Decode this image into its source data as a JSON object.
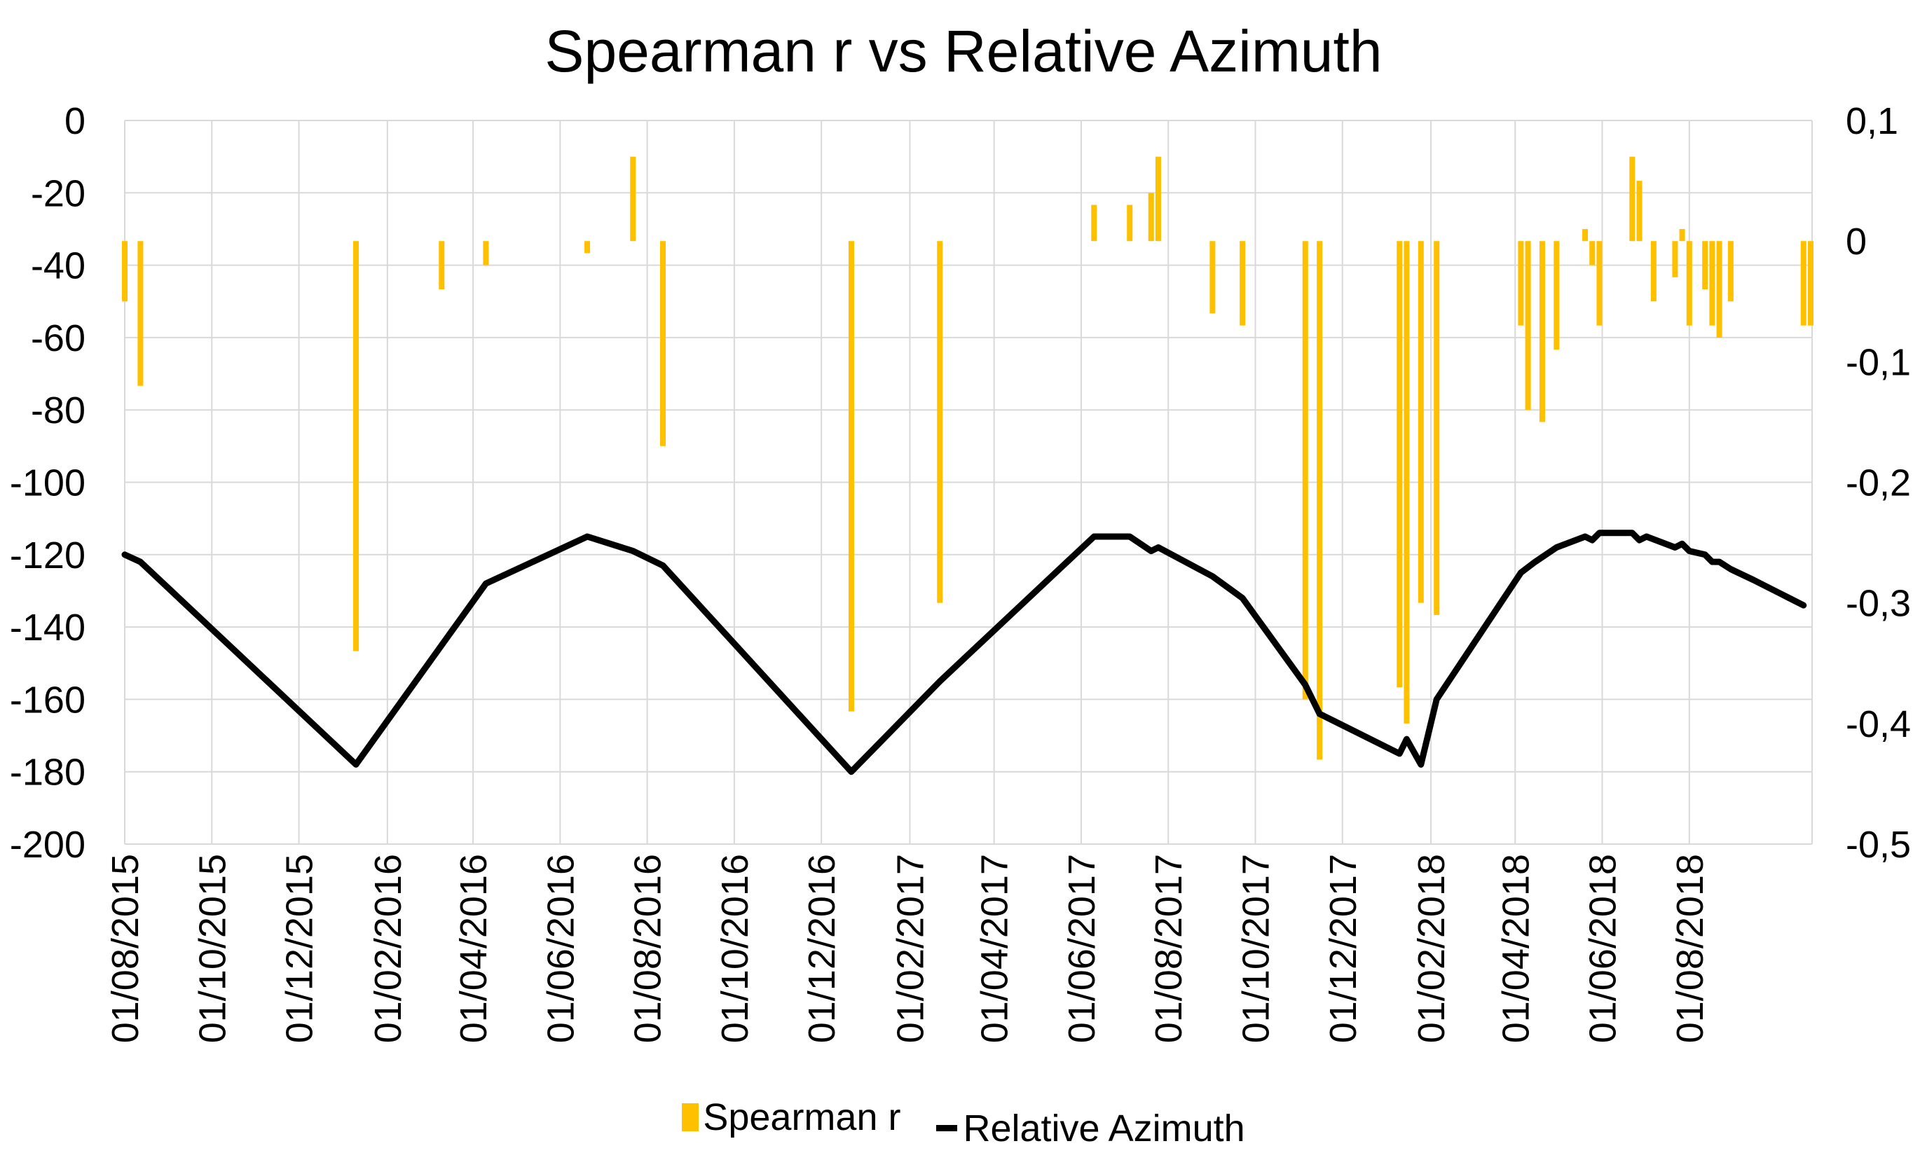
{
  "colors": {
    "spearman": "#FFC000",
    "azimuth": "#000000",
    "grid": "#D9D9D9",
    "axis_text": "#000000"
  },
  "chart_data": {
    "type": "bar",
    "title": "Spearman r vs Relative Azimuth",
    "xlabel": "",
    "ylabel": "",
    "y2label": "",
    "x_type": "date",
    "x_range": [
      "2015-08-01",
      "2018-10-26"
    ],
    "x_ticks": [
      "01/08/2015",
      "01/10/2015",
      "01/12/2015",
      "01/02/2016",
      "01/04/2016",
      "01/06/2016",
      "01/08/2016",
      "01/10/2016",
      "01/12/2016",
      "01/02/2017",
      "01/04/2017",
      "01/06/2017",
      "01/08/2017",
      "01/10/2017",
      "01/12/2017",
      "01/02/2018",
      "01/04/2018",
      "01/06/2018",
      "01/08/2018"
    ],
    "ylim": [
      -200,
      0
    ],
    "y_ticks": [
      "0",
      "-20",
      "-40",
      "-60",
      "-80",
      "-100",
      "-120",
      "-140",
      "-160",
      "-180",
      "-200"
    ],
    "y_tick_values": [
      0,
      -20,
      -40,
      -60,
      -80,
      -100,
      -120,
      -140,
      -160,
      -180,
      -200
    ],
    "y2lim": [
      -0.5,
      0.1
    ],
    "y2_ticks": [
      "0,1",
      "0",
      "-0,1",
      "-0,2",
      "-0,3",
      "-0,4",
      "-0,5"
    ],
    "y2_tick_values": [
      0.1,
      0,
      -0.1,
      -0.2,
      -0.3,
      -0.4,
      -0.5
    ],
    "grid": true,
    "legend_position": "bottom",
    "legend": [
      "Spearman r",
      "Relative Azimuth"
    ],
    "series": [
      {
        "name": "Spearman r",
        "type": "bar",
        "axis": "right",
        "points": [
          {
            "x": "2015-08-01",
            "y": -0.05
          },
          {
            "x": "2015-08-12",
            "y": -0.12
          },
          {
            "x": "2016-01-10",
            "y": -0.34
          },
          {
            "x": "2016-03-10",
            "y": -0.04
          },
          {
            "x": "2016-04-10",
            "y": -0.02
          },
          {
            "x": "2016-06-20",
            "y": -0.01
          },
          {
            "x": "2016-07-22",
            "y": 0.07
          },
          {
            "x": "2016-08-12",
            "y": -0.17
          },
          {
            "x": "2016-12-22",
            "y": -0.39
          },
          {
            "x": "2017-02-22",
            "y": -0.3
          },
          {
            "x": "2017-06-10",
            "y": 0.03
          },
          {
            "x": "2017-07-05",
            "y": 0.03
          },
          {
            "x": "2017-07-20",
            "y": 0.04
          },
          {
            "x": "2017-07-25",
            "y": 0.07
          },
          {
            "x": "2017-09-01",
            "y": -0.06
          },
          {
            "x": "2017-09-22",
            "y": -0.07
          },
          {
            "x": "2017-11-05",
            "y": -0.38
          },
          {
            "x": "2017-11-15",
            "y": -0.43
          },
          {
            "x": "2018-01-10",
            "y": -0.37
          },
          {
            "x": "2018-01-15",
            "y": -0.4
          },
          {
            "x": "2018-01-25",
            "y": -0.3
          },
          {
            "x": "2018-02-05",
            "y": -0.31
          },
          {
            "x": "2018-04-05",
            "y": -0.07
          },
          {
            "x": "2018-04-10",
            "y": -0.14
          },
          {
            "x": "2018-04-20",
            "y": -0.15
          },
          {
            "x": "2018-04-30",
            "y": -0.09
          },
          {
            "x": "2018-05-20",
            "y": 0.01
          },
          {
            "x": "2018-05-25",
            "y": -0.02
          },
          {
            "x": "2018-05-30",
            "y": -0.07
          },
          {
            "x": "2018-06-22",
            "y": 0.07
          },
          {
            "x": "2018-06-27",
            "y": 0.05
          },
          {
            "x": "2018-07-07",
            "y": -0.05
          },
          {
            "x": "2018-07-22",
            "y": -0.03
          },
          {
            "x": "2018-07-27",
            "y": 0.01
          },
          {
            "x": "2018-08-01",
            "y": -0.07
          },
          {
            "x": "2018-08-12",
            "y": -0.04
          },
          {
            "x": "2018-08-17",
            "y": -0.07
          },
          {
            "x": "2018-08-22",
            "y": -0.08
          },
          {
            "x": "2018-08-30",
            "y": -0.05
          },
          {
            "x": "2018-10-20",
            "y": -0.07
          },
          {
            "x": "2018-10-25",
            "y": -0.07
          }
        ]
      },
      {
        "name": "Relative Azimuth",
        "type": "line",
        "axis": "left",
        "points": [
          {
            "x": "2015-08-01",
            "y": -120
          },
          {
            "x": "2015-08-12",
            "y": -122
          },
          {
            "x": "2016-01-10",
            "y": -178
          },
          {
            "x": "2016-04-10",
            "y": -128
          },
          {
            "x": "2016-06-20",
            "y": -115
          },
          {
            "x": "2016-07-22",
            "y": -119
          },
          {
            "x": "2016-08-12",
            "y": -123
          },
          {
            "x": "2016-12-22",
            "y": -180
          },
          {
            "x": "2017-02-22",
            "y": -155
          },
          {
            "x": "2017-06-10",
            "y": -115
          },
          {
            "x": "2017-07-05",
            "y": -115
          },
          {
            "x": "2017-07-20",
            "y": -119
          },
          {
            "x": "2017-07-25",
            "y": -118
          },
          {
            "x": "2017-09-01",
            "y": -126
          },
          {
            "x": "2017-09-22",
            "y": -132
          },
          {
            "x": "2017-11-05",
            "y": -156
          },
          {
            "x": "2017-11-15",
            "y": -164
          },
          {
            "x": "2018-01-10",
            "y": -175
          },
          {
            "x": "2018-01-15",
            "y": -171
          },
          {
            "x": "2018-01-25",
            "y": -178
          },
          {
            "x": "2018-02-05",
            "y": -160
          },
          {
            "x": "2018-04-05",
            "y": -125
          },
          {
            "x": "2018-04-15",
            "y": -122
          },
          {
            "x": "2018-04-30",
            "y": -118
          },
          {
            "x": "2018-05-20",
            "y": -115
          },
          {
            "x": "2018-05-25",
            "y": -116
          },
          {
            "x": "2018-05-30",
            "y": -114
          },
          {
            "x": "2018-06-22",
            "y": -114
          },
          {
            "x": "2018-06-27",
            "y": -116
          },
          {
            "x": "2018-07-02",
            "y": -115
          },
          {
            "x": "2018-07-22",
            "y": -118
          },
          {
            "x": "2018-07-27",
            "y": -117
          },
          {
            "x": "2018-08-01",
            "y": -119
          },
          {
            "x": "2018-08-12",
            "y": -120
          },
          {
            "x": "2018-08-17",
            "y": -122
          },
          {
            "x": "2018-08-22",
            "y": -122
          },
          {
            "x": "2018-08-30",
            "y": -124
          },
          {
            "x": "2018-09-15",
            "y": -127
          },
          {
            "x": "2018-10-10",
            "y": -132
          },
          {
            "x": "2018-10-20",
            "y": -134
          }
        ]
      }
    ]
  }
}
